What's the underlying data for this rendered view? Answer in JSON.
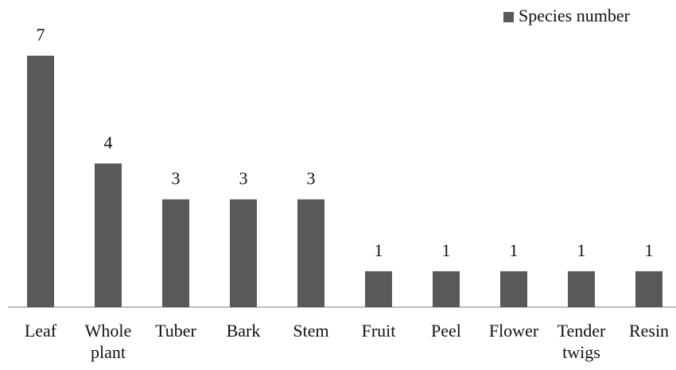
{
  "chart_data": {
    "type": "bar",
    "categories": [
      "Leaf",
      "Whole plant",
      "Tuber",
      "Bark",
      "Stem",
      "Fruit",
      "Peel",
      "Flower",
      "Tender twigs",
      "Resin"
    ],
    "series": [
      {
        "name": "Species number",
        "color": "#595959",
        "values": [
          7,
          4,
          3,
          3,
          3,
          1,
          1,
          1,
          1,
          1
        ]
      }
    ],
    "legend": "top-right"
  }
}
